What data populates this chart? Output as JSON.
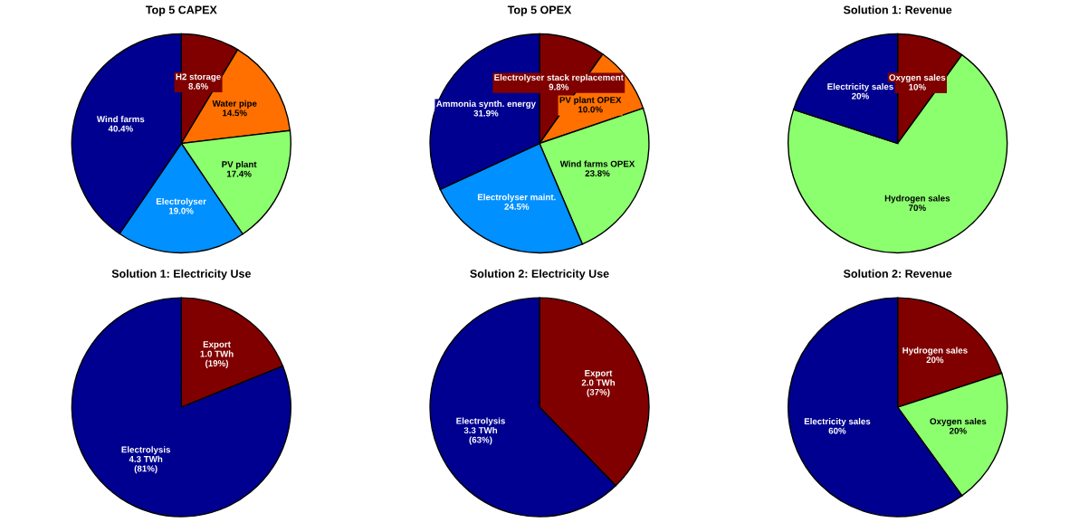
{
  "chart_data": [
    {
      "type": "pie",
      "title": "Top 5 CAPEX",
      "categories": [
        "H2 storage",
        "Water pipe",
        "PV plant",
        "Electrolyser",
        "Wind farms"
      ],
      "values": [
        8.6,
        14.5,
        17.4,
        19.0,
        40.4
      ],
      "colors": [
        "#800000",
        "#ff7000",
        "#8cff6e",
        "#0090ff",
        "#000090"
      ],
      "value_labels": [
        "8.6%",
        "14.5%",
        "17.4%",
        "19.0%",
        "40.4%"
      ]
    },
    {
      "type": "pie",
      "title": "Top 5 OPEX",
      "categories": [
        "Electrolyser stack replacement",
        "PV plant OPEX",
        "Wind farms OPEX",
        "Electrolyser maint.",
        "Ammonia synth. energy"
      ],
      "values": [
        9.8,
        10.0,
        23.8,
        24.5,
        31.9
      ],
      "colors": [
        "#800000",
        "#ff7000",
        "#8cff6e",
        "#0090ff",
        "#000090"
      ],
      "value_labels": [
        "9.8%",
        "10.0%",
        "23.8%",
        "24.5%",
        "31.9%"
      ]
    },
    {
      "type": "pie",
      "title": "Solution 1: Revenue",
      "categories": [
        "Oxygen sales",
        "Hydrogen sales",
        "Electricity sales"
      ],
      "values": [
        10,
        70,
        20
      ],
      "colors": [
        "#800000",
        "#8cff6e",
        "#000090"
      ],
      "value_labels": [
        "10%",
        "70%",
        "20%"
      ]
    },
    {
      "type": "pie",
      "title": "Solution 1: Electricity Use",
      "categories": [
        "Export",
        "Electrolysis"
      ],
      "values": [
        1.0,
        4.3
      ],
      "colors": [
        "#800000",
        "#000090"
      ],
      "value_labels": [
        "1.0 TWh\n(19%)",
        "4.3 TWh\n(81%)"
      ]
    },
    {
      "type": "pie",
      "title": "Solution 2: Electricity Use",
      "categories": [
        "Export",
        "Electrolysis"
      ],
      "values": [
        2.0,
        3.3
      ],
      "colors": [
        "#800000",
        "#000090"
      ],
      "value_labels": [
        "2.0 TWh\n(37%)",
        "3.3 TWh\n(63%)"
      ]
    },
    {
      "type": "pie",
      "title": "Solution 2: Revenue",
      "categories": [
        "Hydrogen sales",
        "Oxygen sales",
        "Electricity sales"
      ],
      "values": [
        20,
        20,
        60
      ],
      "colors": [
        "#800000",
        "#8cff6e",
        "#000090"
      ],
      "value_labels": [
        "20%",
        "20%",
        "60%"
      ]
    }
  ]
}
